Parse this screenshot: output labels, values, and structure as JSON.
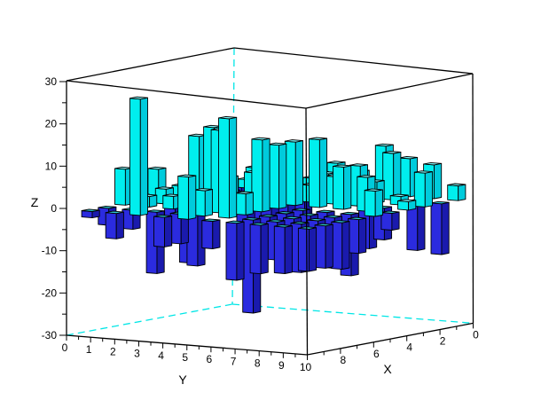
{
  "chart_data": {
    "type": "bar",
    "subtype": "3d-bar-grid",
    "title": "",
    "legend": null,
    "axes": {
      "x": {
        "label": "X",
        "range": [
          0,
          10
        ],
        "major_tick_step": 2,
        "minor_tick_step": 1,
        "labeled_values": [
          8,
          6,
          4,
          2,
          0
        ],
        "direction": "front-corner-to-right-corner"
      },
      "y": {
        "label": "Y",
        "range": [
          0,
          10
        ],
        "major_tick_step": 1,
        "minor_tick_step": 0.5,
        "labeled_values": [
          0,
          1,
          2,
          3,
          4,
          5,
          6,
          7,
          8,
          9,
          10
        ],
        "direction": "left-corner-to-front-corner"
      },
      "z": {
        "label": "Z",
        "range": [
          -30,
          30
        ],
        "major_tick_step": 10,
        "minor_tick_step": 5,
        "labeled_values": [
          30,
          20,
          10,
          0,
          -10,
          -20,
          -30
        ],
        "vertical": true
      }
    },
    "frame": {
      "edge_color": "#000000",
      "hidden_edge_color": "#00E6E6",
      "hidden_edge_style": "dashed"
    },
    "bars": {
      "half_width": 0.22,
      "outline": "#000000",
      "positive_colors": {
        "top": "#7EF2F5",
        "left": "#00EEEE",
        "right": "#00CBDC"
      },
      "negative_colors": {
        "top": "#2FC9D4",
        "left": "#2B2BDF",
        "right": "#1A1AAD"
      }
    },
    "grid": {
      "x": [
        1,
        2,
        3,
        4,
        5,
        6,
        7,
        8,
        9,
        10
      ],
      "y": [
        1,
        2,
        3,
        4,
        5,
        6,
        7,
        8,
        9,
        10
      ]
    },
    "z_matrix_rows_x_cols_y": [
      [
        -2.0,
        3.0,
        3.5,
        2.5,
        6.5,
        5.0,
        11.5,
        9.0,
        8.0,
        3.5
      ],
      [
        1.5,
        2.0,
        4.0,
        -4.5,
        5.0,
        4.0,
        -12.0,
        11.0,
        -11.5,
        -12.0
      ],
      [
        -1.5,
        -3.0,
        6.0,
        9.0,
        -5.5,
        6.0,
        7.5,
        5.0,
        2.0,
        8.0
      ],
      [
        2.0,
        5.0,
        -4.0,
        -6.0,
        -8.0,
        4.0,
        6.5,
        9.5,
        -7.5,
        2.0
      ],
      [
        -9.0,
        14.5,
        6.5,
        -9.0,
        -7.0,
        15.0,
        16.0,
        10.0,
        8.0,
        -4.0
      ],
      [
        7.0,
        3.5,
        2.5,
        6.5,
        8.0,
        15.0,
        -6.5,
        -5.0,
        -14.5,
        6.0
      ],
      [
        1.5,
        3.5,
        -13.5,
        19.0,
        3.0,
        17.0,
        -12.5,
        -11.0,
        -12.0,
        -8.0
      ],
      [
        8.5,
        2.5,
        3.0,
        -13.0,
        19.5,
        5.0,
        -7.5,
        -7.5,
        -6.0,
        -11.0
      ],
      [
        -4.0,
        -4.5,
        -14.5,
        -7.0,
        6.0,
        23.5,
        -22.0,
        -9.0,
        -11.5,
        -10.0
      ],
      [
        -1.5,
        -6.0,
        27.5,
        -7.0,
        10.0,
        -6.5,
        -13.5,
        -11.5,
        -11.0,
        -10.0
      ]
    ],
    "shared_corner_tick_label": "10",
    "layout_hints": {
      "background": "#FFFFFF",
      "grid_lines": false,
      "legend_position": "none"
    }
  }
}
